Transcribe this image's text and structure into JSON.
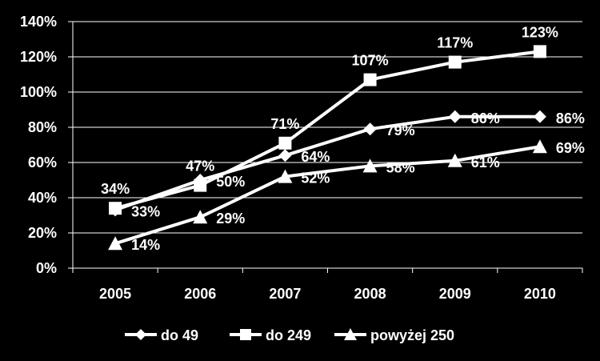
{
  "chart_data": {
    "type": "line",
    "title": "",
    "xlabel": "",
    "ylabel": "",
    "categories": [
      "2005",
      "2006",
      "2007",
      "2008",
      "2009",
      "2010"
    ],
    "ylim": [
      0,
      140
    ],
    "yticks": [
      "0%",
      "20%",
      "40%",
      "60%",
      "80%",
      "100%",
      "120%",
      "140%"
    ],
    "grid": true,
    "legend_position": "bottom",
    "series": [
      {
        "name": "do 49",
        "marker": "diamond",
        "values": [
          33,
          50,
          64,
          79,
          86,
          86
        ],
        "labels": [
          "33%",
          "50%",
          "64%",
          "79%",
          "86%",
          "86%"
        ]
      },
      {
        "name": "do 249",
        "marker": "square",
        "values": [
          34,
          47,
          71,
          107,
          117,
          123
        ],
        "labels": [
          "34%",
          "47%",
          "71%",
          "107%",
          "117%",
          "123%"
        ]
      },
      {
        "name": "powyżej 250",
        "marker": "triangle",
        "values": [
          14,
          29,
          52,
          58,
          61,
          69
        ],
        "labels": [
          "14%",
          "29%",
          "52%",
          "58%",
          "61%",
          "69%"
        ]
      }
    ],
    "colors": {
      "background": "#000000",
      "line": "#ffffff",
      "grid": "#ffffff"
    }
  }
}
